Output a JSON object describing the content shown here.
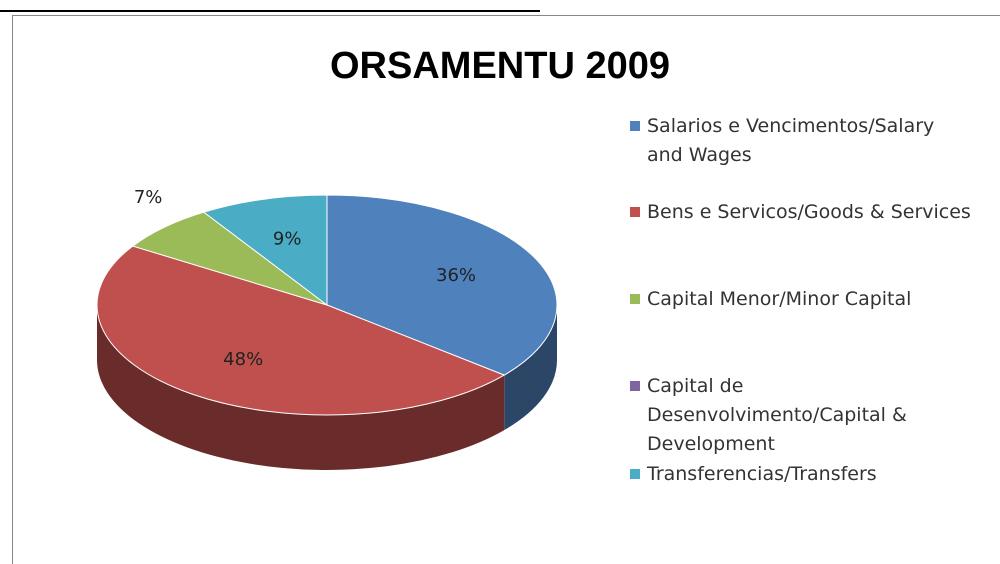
{
  "chart_data": {
    "type": "pie3d",
    "title": "ORSAMENTU 2009",
    "categories": [
      "Salarios e Vencimentos/Salary and Wages",
      "Bens e Servicos/Goods & Services",
      "Capital Menor/Minor Capital",
      "Capital de Desenvolvimento/Capital & Development",
      "Transferencias/Transfers"
    ],
    "values": [
      36,
      48,
      7,
      0,
      9
    ],
    "value_labels": [
      "36%",
      "48%",
      "7%",
      null,
      "9%"
    ],
    "colors": [
      "#4f81bd",
      "#c0504d",
      "#9bbb59",
      "#8064a2",
      "#4bacc6"
    ],
    "legend": "right"
  }
}
